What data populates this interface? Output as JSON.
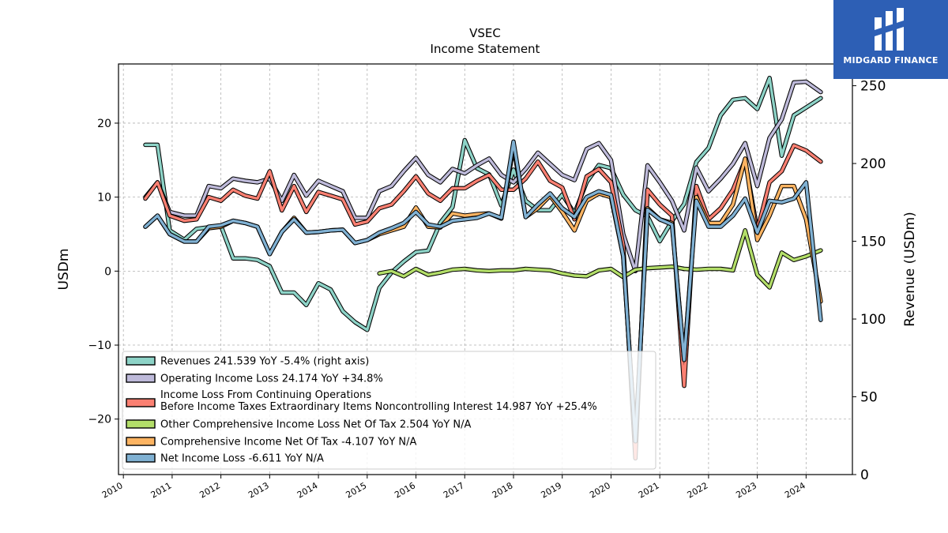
{
  "chart_data": {
    "type": "line",
    "title": "VSEC",
    "subtitle": "Income Statement",
    "ylabel_left": "USDm",
    "ylabel_right": "Revenue (USDm)",
    "ylim_left": [
      -27.5,
      28
    ],
    "ylim_right": [
      0,
      264
    ],
    "xlim": [
      2009.9,
      2024.95
    ],
    "left_ticks": [
      -20,
      -10,
      0,
      10,
      20
    ],
    "right_ticks": [
      0,
      50,
      100,
      150,
      200,
      250
    ],
    "x_ticks": [
      2010,
      2011,
      2012,
      2013,
      2014,
      2015,
      2016,
      2017,
      2018,
      2019,
      2020,
      2021,
      2022,
      2023,
      2024
    ],
    "grid": true,
    "legend_position": "lower-left",
    "series": [
      {
        "key": "revenues",
        "name": "Revenues  241.539 YoY -5.4% (right axis)",
        "axis": "right",
        "color": "#8dd3c7",
        "x": [
          2010.45,
          2010.7,
          2010.95,
          2011.25,
          2011.5,
          2011.75,
          2012.0,
          2012.25,
          2012.5,
          2012.75,
          2013.0,
          2013.25,
          2013.5,
          2013.75,
          2014.0,
          2014.25,
          2014.5,
          2014.75,
          2015.0,
          2015.25,
          2015.5,
          2015.75,
          2016.0,
          2016.25,
          2016.5,
          2016.75,
          2017.0,
          2017.25,
          2017.5,
          2017.75,
          2018.0,
          2018.25,
          2018.5,
          2018.75,
          2019.0,
          2019.25,
          2019.5,
          2019.75,
          2020.0,
          2020.25,
          2020.5,
          2020.75,
          2021.0,
          2021.25,
          2021.5,
          2021.75,
          2022.0,
          2022.25,
          2022.5,
          2022.75,
          2023.0,
          2023.25,
          2023.5,
          2023.75,
          2024.0,
          2024.3
        ],
        "values": [
          212,
          212,
          157,
          151,
          158,
          159,
          160,
          139,
          139,
          138,
          134,
          117,
          117,
          109,
          123,
          119,
          105,
          98,
          93,
          120,
          130,
          137,
          143,
          144,
          162,
          172,
          215,
          197,
          193,
          173,
          196,
          176,
          170,
          170,
          180,
          168,
          188,
          199,
          197,
          180,
          170,
          166,
          150,
          163,
          174,
          201,
          210,
          231,
          241,
          242,
          235,
          255,
          205,
          231,
          236,
          242
        ]
      },
      {
        "key": "operating",
        "name": "Operating Income Loss  24.174 YoY +34.8%",
        "axis": "left",
        "color": "#bebada",
        "x": [
          2010.45,
          2010.7,
          2010.95,
          2011.25,
          2011.5,
          2011.75,
          2012.0,
          2012.25,
          2012.5,
          2012.75,
          2013.0,
          2013.25,
          2013.5,
          2013.75,
          2014.0,
          2014.25,
          2014.5,
          2014.75,
          2015.0,
          2015.25,
          2015.5,
          2015.75,
          2016.0,
          2016.25,
          2016.5,
          2016.75,
          2017.0,
          2017.25,
          2017.5,
          2017.75,
          2018.0,
          2018.25,
          2018.5,
          2018.75,
          2019.0,
          2019.25,
          2019.5,
          2019.75,
          2020.0,
          2020.25,
          2020.5,
          2020.75,
          2021.0,
          2021.25,
          2021.5,
          2021.75,
          2022.0,
          2022.25,
          2022.5,
          2022.75,
          2023.0,
          2023.25,
          2023.5,
          2023.75,
          2024.0,
          2024.3
        ],
        "values": [
          10,
          12,
          8,
          7.5,
          7.5,
          11.5,
          11.2,
          12.5,
          12.2,
          12,
          12.5,
          9.5,
          13,
          10.2,
          12.2,
          11.5,
          10.8,
          7.2,
          7.2,
          10.8,
          11.5,
          13.5,
          15.3,
          13,
          12,
          13.8,
          13.2,
          14.3,
          15.2,
          13,
          12,
          13.8,
          16,
          14.5,
          13,
          12.3,
          16.5,
          17.3,
          15,
          5,
          0,
          14.3,
          12,
          9.5,
          5.5,
          14,
          10.8,
          12.5,
          14.5,
          17.3,
          11.5,
          18,
          20.5,
          25.5,
          25.6,
          24.2
        ]
      },
      {
        "key": "pretax",
        "name": "Income Loss From Continuing Operations\nBefore Income Taxes Extraordinary Items Noncontrolling Interest  14.987 YoY +25.4%",
        "axis": "left",
        "color": "#fb8072",
        "x": [
          2010.45,
          2010.7,
          2010.95,
          2011.25,
          2011.5,
          2011.75,
          2012.0,
          2012.25,
          2012.5,
          2012.75,
          2013.0,
          2013.25,
          2013.5,
          2013.75,
          2014.0,
          2014.25,
          2014.5,
          2014.75,
          2015.0,
          2015.25,
          2015.5,
          2015.75,
          2016.0,
          2016.25,
          2016.5,
          2016.75,
          2017.0,
          2017.25,
          2017.5,
          2017.75,
          2018.0,
          2018.25,
          2018.5,
          2018.75,
          2019.0,
          2019.25,
          2019.5,
          2019.75,
          2020.0,
          2020.25,
          2020.5,
          2020.75,
          2021.0,
          2021.25,
          2021.5,
          2021.75,
          2022.0,
          2022.25,
          2022.5,
          2022.75,
          2023.0,
          2023.25,
          2023.5,
          2023.75,
          2024.0,
          2024.3
        ],
        "values": [
          9.8,
          12,
          7.5,
          6.8,
          7,
          10,
          9.5,
          11,
          10.2,
          9.8,
          13.5,
          8.2,
          11.5,
          8,
          10.7,
          10.2,
          9.7,
          6.3,
          6.7,
          8.5,
          9,
          10.8,
          12.8,
          10.5,
          9.5,
          11.2,
          11.2,
          12.2,
          13,
          11,
          11,
          12.5,
          14.8,
          12.2,
          11.3,
          7,
          12.8,
          13.8,
          12,
          3.5,
          -25.3,
          11,
          9,
          7.5,
          -15.5,
          11.5,
          7,
          8.5,
          11,
          15,
          5.5,
          12,
          13.5,
          17,
          16.3,
          14.8
        ]
      },
      {
        "key": "oci",
        "name": "Other Comprehensive Income Loss Net Of Tax  2.504 YoY N/A",
        "axis": "left",
        "color": "#b3de69",
        "x": [
          2015.25,
          2015.5,
          2015.75,
          2016.0,
          2016.25,
          2016.5,
          2016.75,
          2017.0,
          2017.25,
          2017.5,
          2017.75,
          2018.0,
          2018.25,
          2018.5,
          2018.75,
          2019.0,
          2019.25,
          2019.5,
          2019.75,
          2020.0,
          2020.25,
          2020.5,
          2020.75,
          2021.0,
          2021.25,
          2021.5,
          2021.75,
          2022.0,
          2022.25,
          2022.5,
          2022.75,
          2023.0,
          2023.25,
          2023.5,
          2023.75,
          2024.0,
          2024.3
        ],
        "values": [
          -0.3,
          0,
          -0.7,
          0.3,
          -0.5,
          -0.2,
          0.2,
          0.3,
          0.1,
          0,
          0.1,
          0.1,
          0.3,
          0.2,
          0.1,
          -0.3,
          -0.6,
          -0.7,
          0.1,
          0.3,
          -0.8,
          0.2,
          0.4,
          0.5,
          0.6,
          0.3,
          0.2,
          0.3,
          0.3,
          0.1,
          5.5,
          -0.5,
          -2.2,
          2.5,
          1.5,
          2,
          2.8
        ]
      },
      {
        "key": "comprehensive",
        "name": "Comprehensive Income Net Of Tax  -4.107 YoY N/A",
        "axis": "left",
        "color": "#fdb462",
        "x": [
          2010.45,
          2010.7,
          2010.95,
          2011.25,
          2011.5,
          2011.75,
          2012.0,
          2012.25,
          2012.5,
          2012.75,
          2013.0,
          2013.25,
          2013.5,
          2013.75,
          2014.0,
          2014.25,
          2014.5,
          2014.75,
          2015.0,
          2015.25,
          2015.5,
          2015.75,
          2016.0,
          2016.25,
          2016.5,
          2016.75,
          2017.0,
          2017.25,
          2017.5,
          2017.75,
          2018.0,
          2018.25,
          2018.5,
          2018.75,
          2019.0,
          2019.25,
          2019.5,
          2019.75,
          2020.0,
          2020.25,
          2020.5,
          2020.75,
          2021.0,
          2021.25,
          2021.5,
          2021.75,
          2022.0,
          2022.25,
          2022.5,
          2022.75,
          2023.0,
          2023.25,
          2023.5,
          2023.75,
          2024.0,
          2024.3
        ],
        "values": [
          6,
          7.5,
          5,
          4,
          4,
          5.8,
          6,
          6.8,
          6.5,
          6,
          2.3,
          5.3,
          7.2,
          5.2,
          5.3,
          5.5,
          5.6,
          3.8,
          4.2,
          5,
          5.5,
          6,
          8.6,
          6,
          5.9,
          7.8,
          7.5,
          7.7,
          7.8,
          7.1,
          16.8,
          7.3,
          8.5,
          10.2,
          8,
          5.5,
          9.5,
          10.5,
          10,
          2,
          -23,
          8.5,
          7,
          6.5,
          -12,
          10,
          6.5,
          6.5,
          9,
          15.2,
          4.2,
          7.5,
          11.5,
          11.5,
          7,
          -4.1
        ]
      },
      {
        "key": "netincome",
        "name": "Net Income Loss  -6.611 YoY N/A",
        "axis": "left",
        "color": "#80b1d3",
        "x": [
          2010.45,
          2010.7,
          2010.95,
          2011.25,
          2011.5,
          2011.75,
          2012.0,
          2012.25,
          2012.5,
          2012.75,
          2013.0,
          2013.25,
          2013.5,
          2013.75,
          2014.0,
          2014.25,
          2014.5,
          2014.75,
          2015.0,
          2015.25,
          2015.5,
          2015.75,
          2016.0,
          2016.25,
          2016.5,
          2016.75,
          2017.0,
          2017.25,
          2017.5,
          2017.75,
          2018.0,
          2018.25,
          2018.5,
          2018.75,
          2019.0,
          2019.25,
          2019.5,
          2019.75,
          2020.0,
          2020.25,
          2020.5,
          2020.75,
          2021.0,
          2021.25,
          2021.5,
          2021.75,
          2022.0,
          2022.25,
          2022.5,
          2022.75,
          2023.0,
          2023.25,
          2023.5,
          2023.75,
          2024.0,
          2024.3
        ],
        "values": [
          6,
          7.5,
          5,
          4,
          4,
          6,
          6.2,
          6.8,
          6.5,
          6,
          2.3,
          5.3,
          7,
          5.2,
          5.3,
          5.5,
          5.6,
          3.8,
          4.2,
          5.2,
          5.8,
          6.5,
          8,
          6.3,
          6,
          6.8,
          7,
          7.2,
          7.8,
          7.2,
          17.5,
          7.3,
          9,
          10.5,
          8.5,
          7.3,
          10,
          10.8,
          10.3,
          2,
          -23,
          8.3,
          7,
          6.3,
          -12,
          9.5,
          6,
          6,
          7.5,
          9.8,
          5.2,
          9.5,
          9.3,
          9.8,
          12,
          -6.6
        ]
      }
    ]
  },
  "logo": {
    "name": "MIDGARD FINANCE"
  }
}
